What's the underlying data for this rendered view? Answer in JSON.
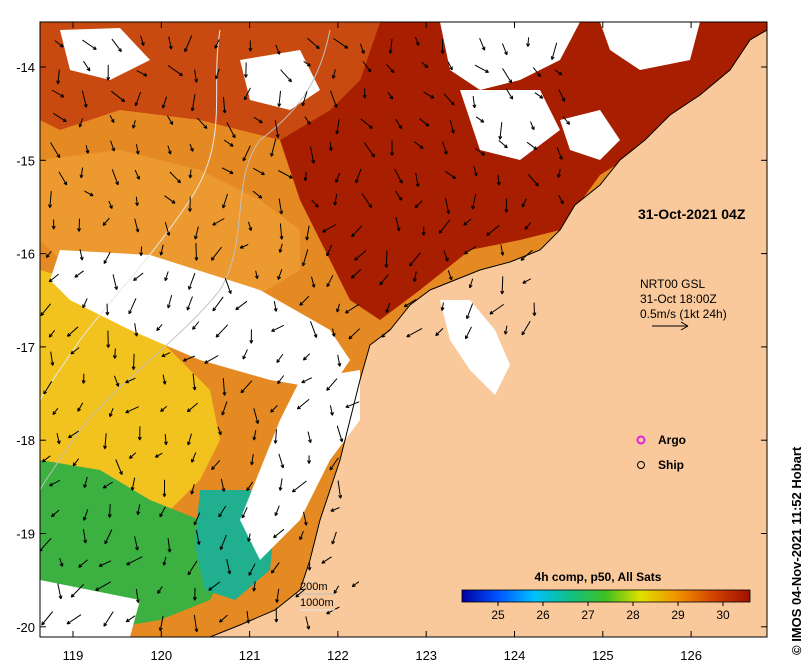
{
  "map": {
    "timestamp_label": "31-Oct-2021 04Z",
    "current_info": [
      "NRT00 GSL",
      "31-Oct 18:00Z",
      "0.5m/s (1kt 24h)"
    ],
    "legend": [
      {
        "symbol": "argo-marker",
        "label": "Argo",
        "color": "#e020e0"
      },
      {
        "symbol": "ship-marker",
        "label": "Ship",
        "color": "#000000"
      }
    ],
    "bathymetry": [
      "200m",
      "1000m"
    ],
    "colorbar": {
      "title": "4h comp, p50, All Sats",
      "ticks": [
        "25",
        "26",
        "27",
        "28",
        "29",
        "30"
      ],
      "min": 24.2,
      "max": 30.6
    },
    "credit": "© IMOS 04-Nov-2021 11:52 Hobart",
    "lon_ticks": [
      "119",
      "120",
      "121",
      "122",
      "123",
      "124",
      "125",
      "126"
    ],
    "lat_ticks": [
      "-14",
      "-15",
      "-16",
      "-17",
      "-18",
      "-19",
      "-20"
    ],
    "colors": {
      "land": "#f9c99b",
      "cloud": "#ffffff",
      "sst_hot": "#a01800",
      "sst_warm": "#e07a10",
      "sst_mid": "#f0c020",
      "sst_cool": "#30b040"
    }
  }
}
